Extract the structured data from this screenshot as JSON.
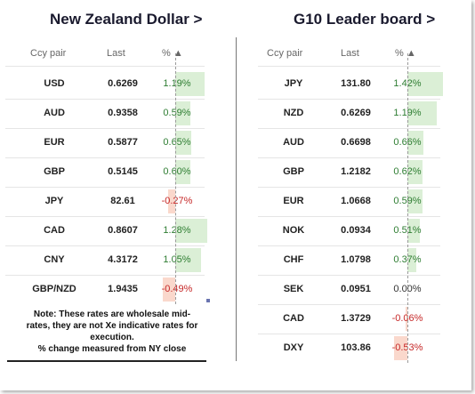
{
  "left": {
    "title": "New Zealand Dollar >",
    "headers": {
      "ccy": "Ccy pair",
      "last": "Last",
      "pct": "% ▲"
    },
    "rows": [
      {
        "ccy": "USD",
        "last": "0.6269",
        "pct": "1.19%",
        "value": 1.19
      },
      {
        "ccy": "AUD",
        "last": "0.9358",
        "pct": "0.59%",
        "value": 0.59
      },
      {
        "ccy": "EUR",
        "last": "0.5877",
        "pct": "0.65%",
        "value": 0.65
      },
      {
        "ccy": "GBP",
        "last": "0.5145",
        "pct": "0.60%",
        "value": 0.6
      },
      {
        "ccy": "JPY",
        "last": "82.61",
        "pct": "-0.27%",
        "value": -0.27
      },
      {
        "ccy": "CAD",
        "last": "0.8607",
        "pct": "1.28%",
        "value": 1.28
      },
      {
        "ccy": "CNY",
        "last": "4.3172",
        "pct": "1.05%",
        "value": 1.05
      },
      {
        "ccy": "GBP/NZD",
        "last": "1.9435",
        "pct": "-0.49%",
        "value": -0.49
      }
    ],
    "note": "Note: These rates are wholesale mid-rates, they are not Xe indicative rates for execution.\n% change measured from NY close"
  },
  "right": {
    "title": "G10 Leader board >",
    "headers": {
      "ccy": "Ccy pair",
      "last": "Last",
      "pct": "% ▲"
    },
    "rows": [
      {
        "ccy": "JPY",
        "last": "131.80",
        "pct": "1.42%",
        "value": 1.42
      },
      {
        "ccy": "NZD",
        "last": "0.6269",
        "pct": "1.19%",
        "value": 1.19
      },
      {
        "ccy": "AUD",
        "last": "0.6698",
        "pct": "0.66%",
        "value": 0.66
      },
      {
        "ccy": "GBP",
        "last": "1.2182",
        "pct": "0.62%",
        "value": 0.62
      },
      {
        "ccy": "EUR",
        "last": "1.0668",
        "pct": "0.59%",
        "value": 0.59
      },
      {
        "ccy": "NOK",
        "last": "0.0934",
        "pct": "0.51%",
        "value": 0.51
      },
      {
        "ccy": "CHF",
        "last": "1.0798",
        "pct": "0.37%",
        "value": 0.37
      },
      {
        "ccy": "SEK",
        "last": "0.0951",
        "pct": "0.00%",
        "value": 0.0
      },
      {
        "ccy": "CAD",
        "last": "1.3729",
        "pct": "-0.06%",
        "value": -0.06
      },
      {
        "ccy": "DXY",
        "last": "103.86",
        "pct": "-0.53%",
        "value": -0.53
      }
    ]
  },
  "colors": {
    "positive": "#2e7d32",
    "negative": "#c62828",
    "bar_positive": "#dbefd6",
    "bar_negative": "#fad8cc"
  }
}
